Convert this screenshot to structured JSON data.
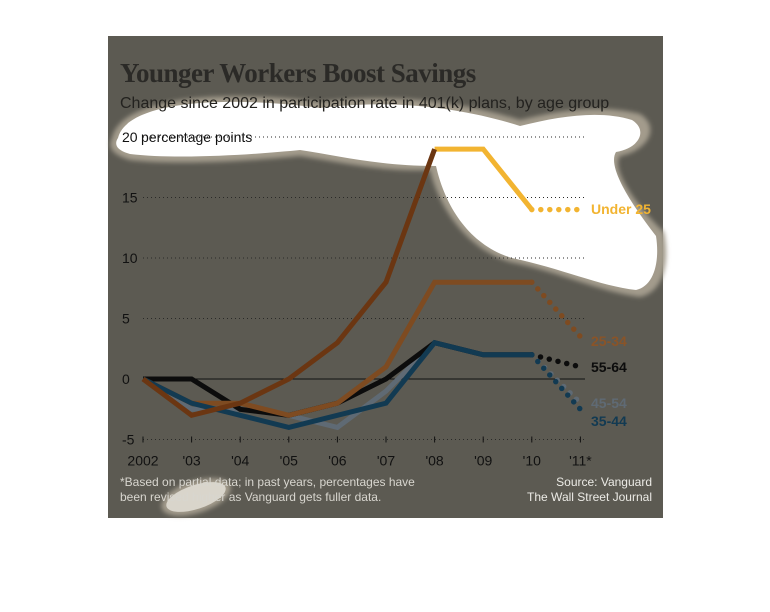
{
  "chart_data": {
    "type": "line",
    "title": "Younger Workers Boost Savings",
    "subtitle": "Change since 2002 in participation rate in 401(k) plans, by age group",
    "y_unit_label": "percentage points",
    "x": [
      2002,
      2003,
      2004,
      2005,
      2006,
      2007,
      2008,
      2009,
      2010,
      2011
    ],
    "x_tick_labels": [
      "2002",
      "'03",
      "'04",
      "'05",
      "'06",
      "'07",
      "'08",
      "'09",
      "'10",
      "'11*"
    ],
    "ylim": [
      -5,
      20
    ],
    "y_ticks": [
      -5,
      0,
      5,
      10,
      15,
      20
    ],
    "y_tick_labels": [
      "-5",
      "0",
      "5",
      "10",
      "15",
      "20"
    ],
    "grid": "dotted horizontal",
    "partial_data_from_x": 2010,
    "series": [
      {
        "name": "45-54",
        "color": "#5f6a74",
        "values": [
          0,
          -2.5,
          -2.5,
          -3,
          -4,
          -1,
          3,
          2,
          2,
          -2
        ]
      },
      {
        "name": "55-64",
        "color": "#0c0c0c",
        "values": [
          0,
          0,
          -2.5,
          -3,
          -2,
          0,
          3,
          2,
          2,
          1
        ]
      },
      {
        "name": "25-34",
        "color": "#7e4b21",
        "values": [
          0,
          -2,
          -2,
          -3,
          -2,
          1,
          8,
          8,
          8,
          3.5
        ]
      },
      {
        "name": "35-44",
        "color": "#123a52",
        "values": [
          0,
          -2,
          -3,
          -4,
          -3,
          -2,
          3,
          2,
          2,
          -2.5
        ]
      },
      {
        "name": "Under 25",
        "color": "#f2b431",
        "values": [
          null,
          null,
          null,
          null,
          null,
          null,
          19,
          19,
          14,
          14
        ]
      },
      {
        "name": "Under 25",
        "color": "#6b3612",
        "values": [
          0,
          -3,
          -2,
          0,
          3,
          8,
          19,
          null,
          null,
          null
        ]
      }
    ]
  },
  "footnote": "*Based on partial data; in past years, percentages have been revised higher as Vanguard gets fuller data.",
  "source": {
    "line1": "Source: Vanguard",
    "line2": "The Wall Street Journal"
  }
}
